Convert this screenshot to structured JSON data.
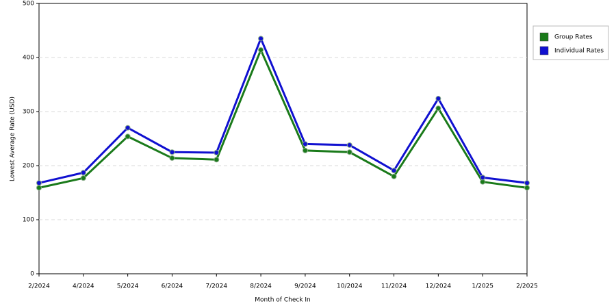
{
  "chart_data": {
    "type": "line",
    "x_label": "Month of Check In",
    "y_label": "Lowest Average Rate (USD)",
    "categories": [
      "2/2024",
      "4/2024",
      "5/2024",
      "6/2024",
      "7/2024",
      "8/2024",
      "9/2024",
      "10/2024",
      "11/2024",
      "12/2024",
      "1/2025",
      "2/2025"
    ],
    "series": [
      {
        "name": "Group Rates",
        "color": "#1a7a1a",
        "values": [
          159,
          177,
          254,
          214,
          211,
          414,
          228,
          225,
          180,
          306,
          170,
          159
        ]
      },
      {
        "name": "Individual Rates",
        "color": "#1010d0",
        "values": [
          168,
          187,
          270,
          225,
          224,
          435,
          240,
          238,
          191,
          324,
          178,
          168
        ]
      }
    ],
    "ylim": [
      0,
      500
    ],
    "yticks": [
      0,
      100,
      200,
      300,
      400,
      500
    ],
    "grid": true,
    "legend": "right"
  }
}
